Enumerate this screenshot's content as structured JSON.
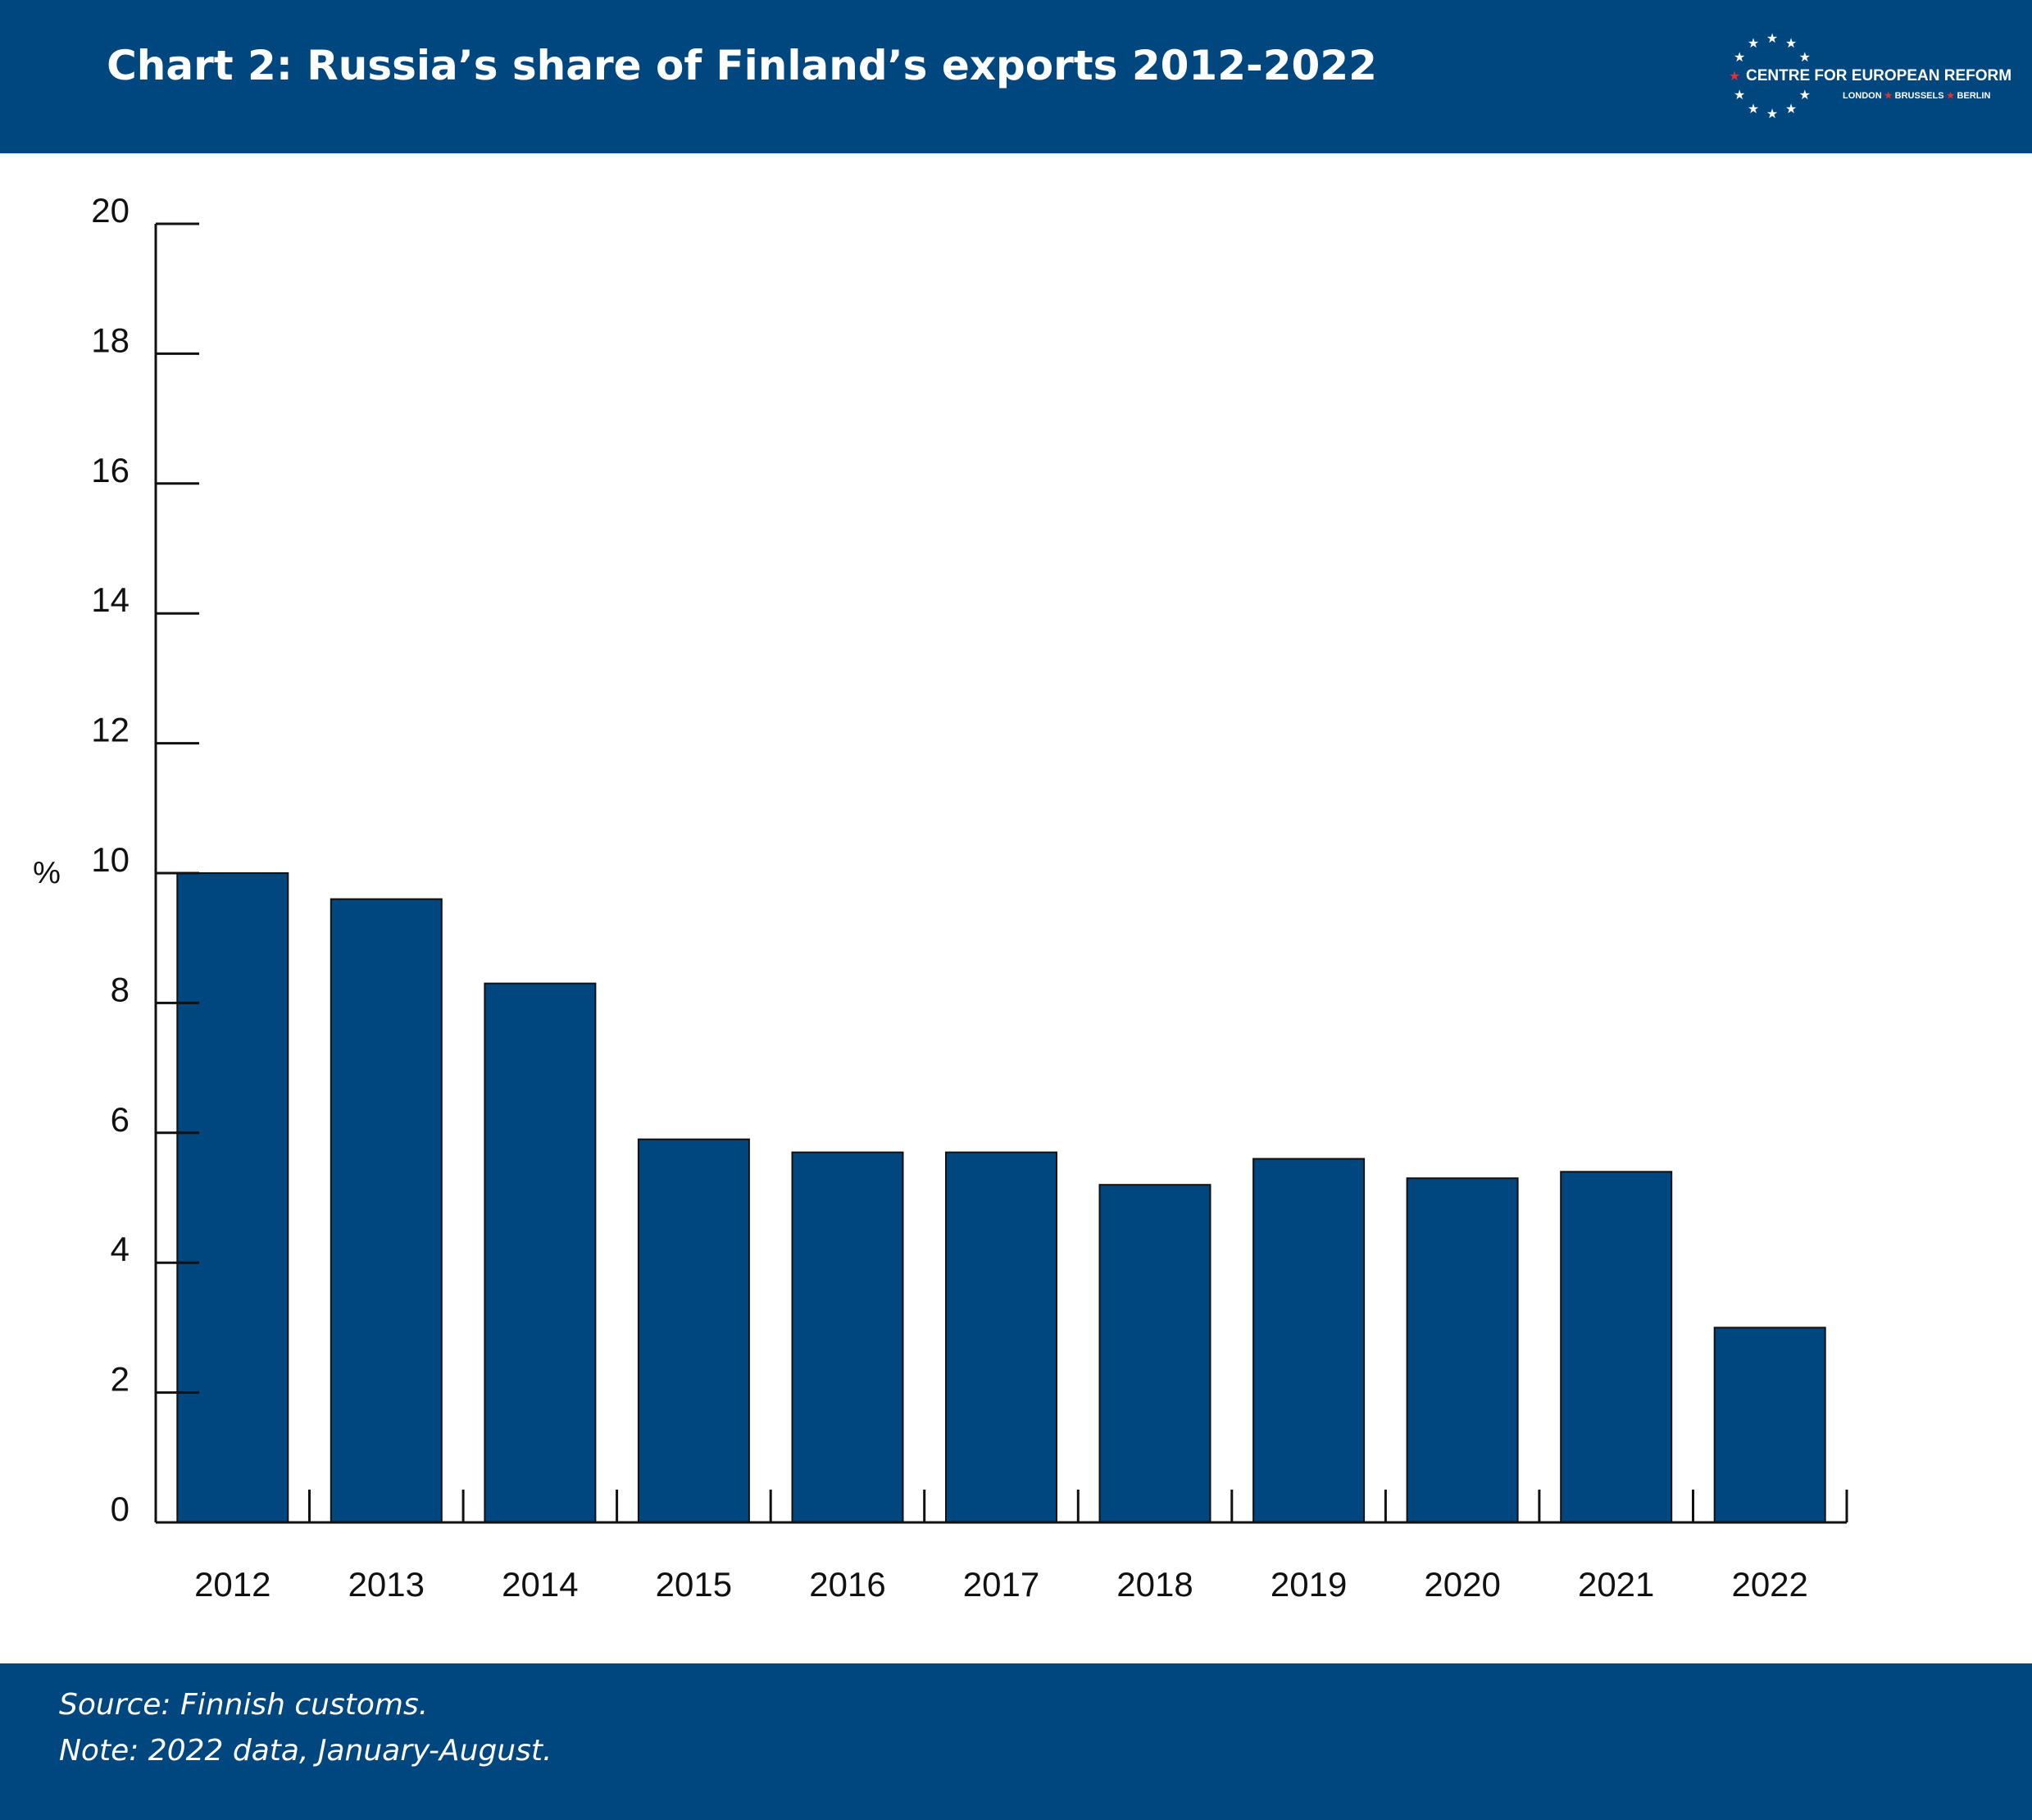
{
  "header": {
    "title": "Chart 2: Russia’s share of Finland’s exports 2012-2022"
  },
  "logo": {
    "org_name": "CENTRE FOR EUROPEAN REFORM",
    "cities": [
      "LONDON",
      "BRUSSELS",
      "BERLIN"
    ],
    "star_color": "#ffffff",
    "accent_star_color": "#e3312e"
  },
  "colors": {
    "brand_blue": "#00467f",
    "bar_fill": "#00467f",
    "bar_stroke": "#111111",
    "axis": "#111111"
  },
  "chart_data": {
    "type": "bar",
    "title": "Chart 2: Russia’s share of Finland’s exports 2012-2022",
    "xlabel": "",
    "ylabel": "%",
    "categories": [
      "2012",
      "2013",
      "2014",
      "2015",
      "2016",
      "2017",
      "2018",
      "2019",
      "2020",
      "2021",
      "2022"
    ],
    "values": [
      10.0,
      9.6,
      8.3,
      5.9,
      5.7,
      5.7,
      5.2,
      5.6,
      5.3,
      5.4,
      3.0
    ],
    "ylim": [
      0,
      20
    ],
    "yticks": [
      0,
      2,
      4,
      6,
      8,
      10,
      12,
      14,
      16,
      18,
      20
    ],
    "grid": false,
    "legend": "none"
  },
  "footer": {
    "source": "Source:  Finnish customs.",
    "note": "Note: 2022 data, January-August."
  }
}
